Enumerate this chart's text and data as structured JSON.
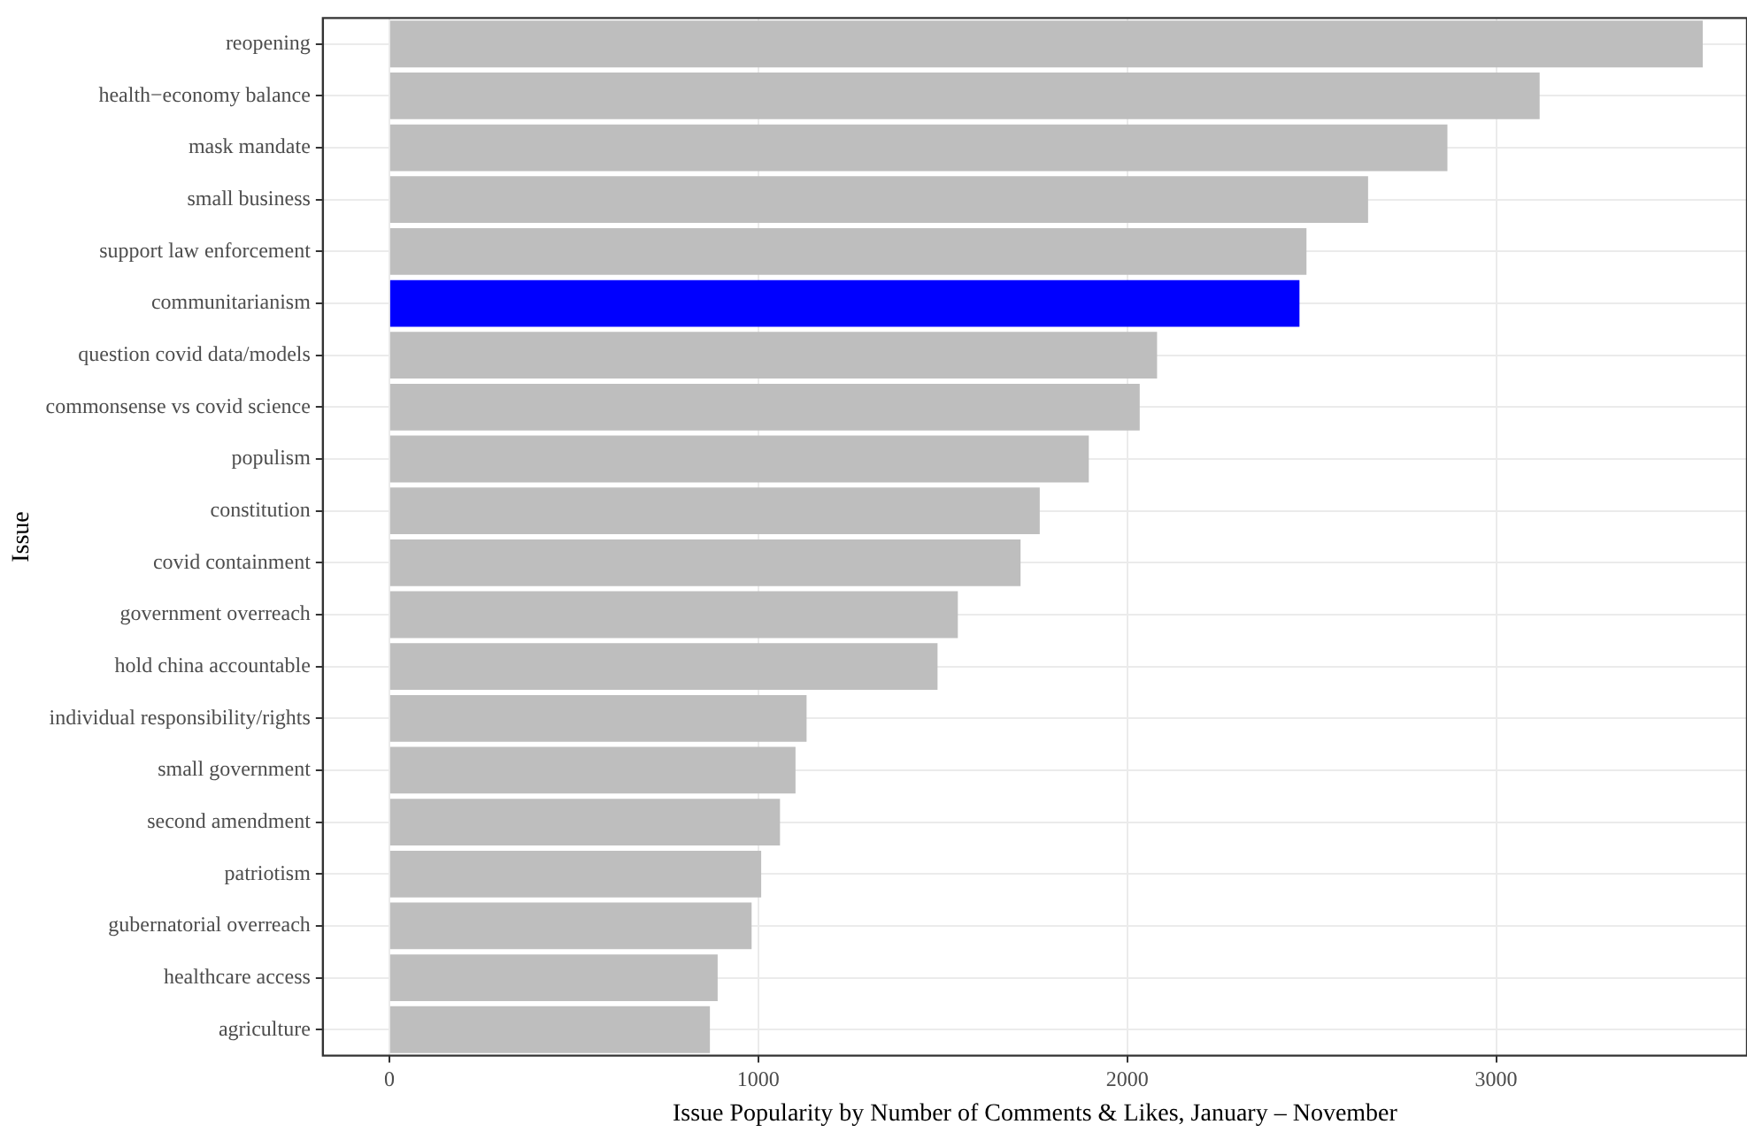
{
  "chart_data": {
    "type": "bar",
    "orientation": "horizontal",
    "xlabel": "Issue Popularity by Number of Comments & Likes, January – November",
    "ylabel": "Issue",
    "categories": [
      "reopening",
      "health−economy balance",
      "mask mandate",
      "small business",
      "support law enforcement",
      "communitarianism",
      "question covid data/models",
      "commonsense vs covid science",
      "populism",
      "constitution",
      "covid containment",
      "government overreach",
      "hold china accountable",
      "individual responsibility/rights",
      "small government",
      "second amendment",
      "patriotism",
      "gubernatorial overreach",
      "healthcare access",
      "agriculture"
    ],
    "values": [
      3560,
      3118,
      2868,
      2653,
      2486,
      2467,
      2081,
      2034,
      1896,
      1763,
      1711,
      1541,
      1486,
      1131,
      1101,
      1059,
      1008,
      982,
      890,
      869
    ],
    "colors": [
      "#bebebe",
      "#bebebe",
      "#bebebe",
      "#bebebe",
      "#bebebe",
      "#0000ff",
      "#bebebe",
      "#bebebe",
      "#bebebe",
      "#bebebe",
      "#bebebe",
      "#bebebe",
      "#bebebe",
      "#bebebe",
      "#bebebe",
      "#bebebe",
      "#bebebe",
      "#bebebe",
      "#bebebe",
      "#bebebe"
    ],
    "xlim": [
      -180,
      3680
    ],
    "xticks": [
      0,
      1000,
      2000,
      3000
    ],
    "grid": true,
    "legend": false
  }
}
